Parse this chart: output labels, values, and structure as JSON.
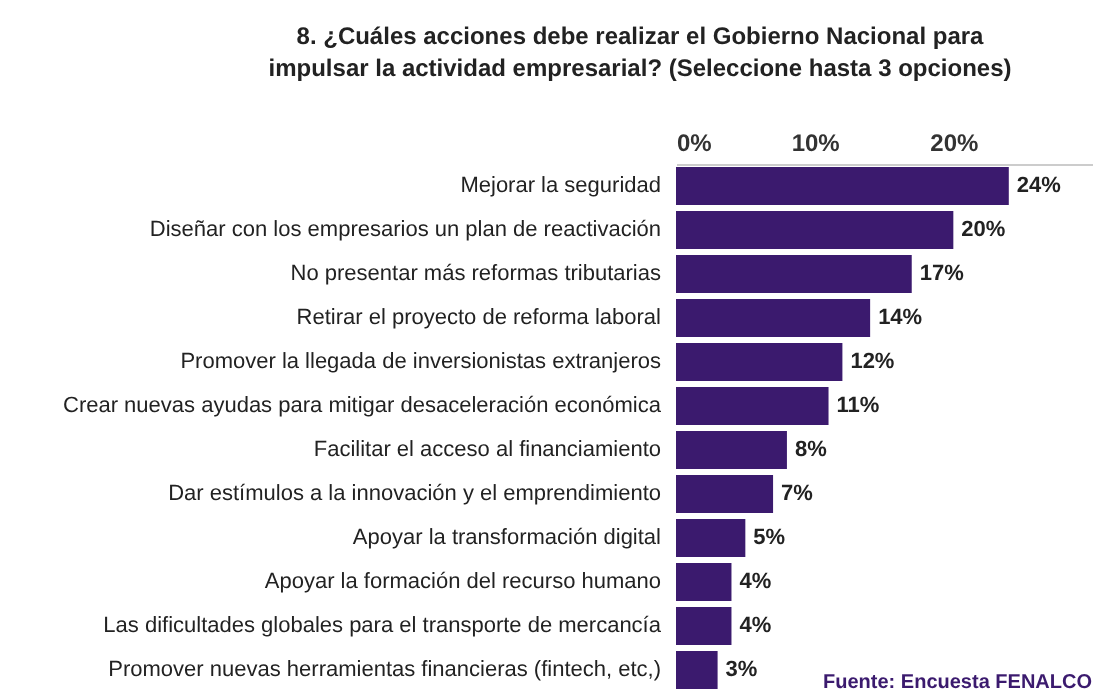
{
  "chart_data": {
    "type": "bar",
    "orientation": "horizontal",
    "title": "8. ¿Cuáles acciones debe realizar el Gobierno Nacional para impulsar la actividad empresarial? (Seleccione hasta 3 opciones)",
    "categories": [
      "Mejorar la seguridad",
      "Diseñar con los empresarios un plan de reactivación",
      "No presentar más reformas tributarias",
      "Retirar el proyecto de reforma laboral",
      "Promover la llegada de inversionistas extranjeros",
      "Crear nuevas ayudas para mitigar desaceleración económica",
      "Facilitar el acceso al financiamiento",
      "Dar estímulos a la innovación y el emprendimiento",
      "Apoyar la transformación digital",
      "Apoyar la formación del recurso humano",
      "Las dificultades globales para el transporte de mercancía",
      "Promover nuevas herramientas financieras (fintech, etc,)"
    ],
    "values": [
      24,
      20,
      17,
      14,
      12,
      11,
      8,
      7,
      5,
      4,
      4,
      3
    ],
    "value_labels": [
      "24%",
      "20%",
      "17%",
      "14%",
      "12%",
      "11%",
      "8%",
      "7%",
      "5%",
      "4%",
      "4%",
      "3%"
    ],
    "color": "#3b1a6e",
    "xlim": [
      0,
      30
    ],
    "xticks": [
      {
        "value": 0,
        "label": "0%"
      },
      {
        "value": 10,
        "label": "10%"
      },
      {
        "value": 20,
        "label": "20%"
      }
    ],
    "grid": false,
    "annotations": [
      "Fuente: Encuesta FENALCO"
    ]
  }
}
